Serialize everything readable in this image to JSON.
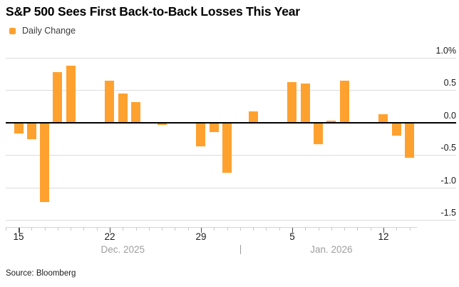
{
  "header": {
    "title": "S&P 500 Sees First Back-to-Back Losses This Year",
    "legend": {
      "label": "Daily Change"
    }
  },
  "source": "Source: Bloomberg",
  "colors": {
    "bar": "#FFA12F",
    "gridline": "#DCDCDC",
    "zero_line": "#000000",
    "axis_line": "#D4D4D4",
    "minor_tick": "#C9C9C9",
    "major_tick": "#4A4A4A",
    "day_label": "#1B1B1B",
    "month_label": "#9E9E9E"
  },
  "chart_data": {
    "type": "bar",
    "title": "S&P 500 Sees First Back-to-Back Losses This Year",
    "series_name": "Daily Change",
    "unit": "%",
    "ylim": [
      -1.5,
      1.0
    ],
    "grid": "on",
    "legend_position": "top-left",
    "y_axis": {
      "side": "right",
      "tick_values": [
        1.0,
        0.5,
        0.0,
        -0.5,
        -1.0,
        -1.5
      ],
      "tick_labels": [
        "1.0%",
        "0.5",
        "0.0",
        "-0.5",
        "-1.0",
        "-1.5"
      ]
    },
    "x_axis": {
      "major_ticks": [
        {
          "label": "15",
          "day": 0
        },
        {
          "label": "22",
          "day": 7
        },
        {
          "label": "29",
          "day": 14
        },
        {
          "label": "5",
          "day": 21
        },
        {
          "label": "12",
          "day": 28
        }
      ],
      "minor_tick_day_range": [
        -1,
        30
      ],
      "month_labels": [
        {
          "label": "Dec. 2025",
          "center_day": 8.0
        },
        {
          "label": "Jan. 2026",
          "center_day": 24.0
        }
      ],
      "divider": {
        "label": "|",
        "center_day": 17.05
      }
    },
    "points": [
      {
        "date": "Dec 15",
        "day": 0,
        "value": -0.17
      },
      {
        "date": "Dec 16",
        "day": 1,
        "value": -0.26
      },
      {
        "date": "Dec 17",
        "day": 2,
        "value": -1.22
      },
      {
        "date": "Dec 18",
        "day": 3,
        "value": 0.78
      },
      {
        "date": "Dec 19",
        "day": 4,
        "value": 0.87
      },
      {
        "date": "Dec 22",
        "day": 7,
        "value": 0.64
      },
      {
        "date": "Dec 23",
        "day": 8,
        "value": 0.45
      },
      {
        "date": "Dec 24",
        "day": 9,
        "value": 0.31
      },
      {
        "date": "Dec 26",
        "day": 11,
        "value": -0.04
      },
      {
        "date": "Dec 29",
        "day": 14,
        "value": -0.37
      },
      {
        "date": "Dec 30",
        "day": 15,
        "value": -0.15
      },
      {
        "date": "Dec 31",
        "day": 16,
        "value": -0.77
      },
      {
        "date": "Jan 2",
        "day": 18,
        "value": 0.17
      },
      {
        "date": "Jan 5",
        "day": 21,
        "value": 0.62
      },
      {
        "date": "Jan 6",
        "day": 22,
        "value": 0.6
      },
      {
        "date": "Jan 7",
        "day": 23,
        "value": -0.34
      },
      {
        "date": "Jan 8",
        "day": 24,
        "value": 0.03
      },
      {
        "date": "Jan 9",
        "day": 25,
        "value": 0.64
      },
      {
        "date": "Jan 12",
        "day": 28,
        "value": 0.13
      },
      {
        "date": "Jan 13",
        "day": 29,
        "value": -0.2
      },
      {
        "date": "Jan 14",
        "day": 30,
        "value": -0.54
      }
    ]
  }
}
